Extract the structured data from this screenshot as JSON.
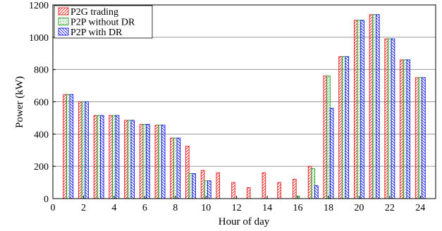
{
  "chart_data": {
    "type": "bar",
    "xlabel": "Hour of day",
    "ylabel": "Power (kW)",
    "xlim": [
      0,
      25
    ],
    "ylim": [
      0,
      1200
    ],
    "xticks": [
      0,
      2,
      4,
      6,
      8,
      10,
      12,
      14,
      16,
      18,
      20,
      22,
      24
    ],
    "yticks": [
      0,
      200,
      400,
      600,
      800,
      1000,
      1200
    ],
    "grid": "horizontal",
    "legend_position": "top-left",
    "hours": [
      1,
      2,
      3,
      4,
      5,
      6,
      7,
      8,
      9,
      10,
      11,
      12,
      13,
      14,
      15,
      16,
      17,
      18,
      19,
      20,
      21,
      22,
      23,
      24
    ],
    "series": [
      {
        "name": "P2G trading",
        "color": "#e8191a",
        "values": [
          645,
          600,
          515,
          515,
          485,
          460,
          455,
          375,
          325,
          175,
          160,
          100,
          68,
          160,
          100,
          120,
          200,
          760,
          880,
          1105,
          1140,
          990,
          860,
          750
        ]
      },
      {
        "name": "P2P without DR",
        "color": "#1a9a1a",
        "values": [
          645,
          600,
          515,
          515,
          485,
          460,
          455,
          375,
          155,
          110,
          0,
          0,
          0,
          0,
          0,
          15,
          185,
          760,
          880,
          1105,
          1140,
          990,
          860,
          750
        ]
      },
      {
        "name": "P2P with DR",
        "color": "#1818e8",
        "values": [
          645,
          600,
          515,
          515,
          485,
          460,
          455,
          375,
          155,
          110,
          0,
          0,
          0,
          0,
          0,
          0,
          80,
          560,
          880,
          1105,
          1140,
          990,
          860,
          750
        ]
      }
    ]
  }
}
